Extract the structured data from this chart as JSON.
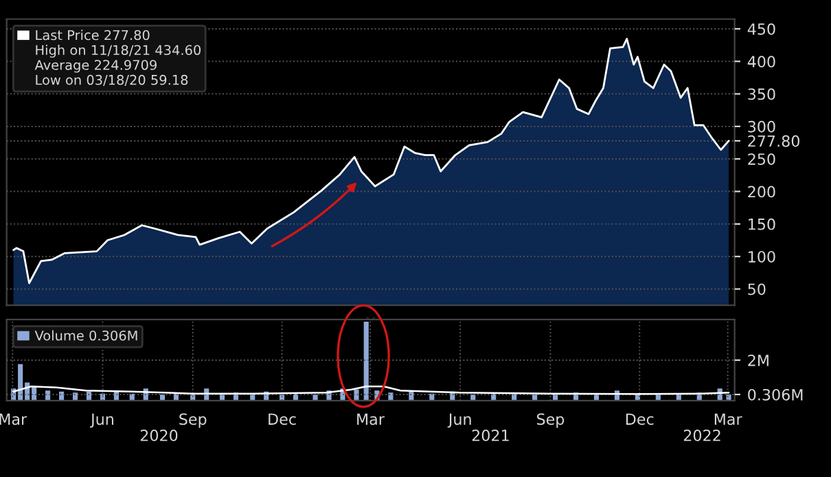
{
  "chart_data": [
    {
      "type": "area",
      "tick_labels": "y",
      "grid": true,
      "legend": "top left",
      "xlim": [
        "2020-02-24",
        "2022-03-08"
      ],
      "ylim": [
        25,
        465
      ],
      "yticks": [
        50,
        100,
        150,
        200,
        250,
        {
          "value": 277.8,
          "label": "277.80"
        },
        300,
        350,
        400,
        450
      ],
      "annotations": [
        "High on 11/18/21 434.60",
        "Average 224.9709",
        "Low on 03/18/20 59.18"
      ],
      "series": [
        {
          "name": "Last Price 277.80",
          "color": "#0c2750",
          "x": [
            "2020-03-02",
            "2020-03-05",
            "2020-03-12",
            "2020-03-18",
            "2020-03-30",
            "2020-04-10",
            "2020-04-23",
            "2020-05-26",
            "2020-06-06",
            "2020-06-23",
            "2020-07-11",
            "2020-07-24",
            "2020-08-17",
            "2020-09-04",
            "2020-09-08",
            "2020-09-27",
            "2020-10-19",
            "2020-10-31",
            "2020-11-16",
            "2020-12-13",
            "2021-01-10",
            "2021-01-29",
            "2021-02-13",
            "2021-02-20",
            "2021-03-06",
            "2021-03-25",
            "2021-04-05",
            "2021-04-16",
            "2021-04-26",
            "2021-05-05",
            "2021-05-12",
            "2021-05-27",
            "2021-06-10",
            "2021-06-29",
            "2021-07-13",
            "2021-07-21",
            "2021-08-04",
            "2021-08-23",
            "2021-09-10",
            "2021-09-20",
            "2021-09-28",
            "2021-10-10",
            "2021-10-17",
            "2021-10-25",
            "2021-11-01",
            "2021-11-14",
            "2021-11-18",
            "2021-11-25",
            "2021-11-29",
            "2021-12-06",
            "2021-12-15",
            "2021-12-26",
            "2022-01-02",
            "2022-01-12",
            "2022-01-19",
            "2022-01-26",
            "2022-02-04",
            "2022-02-12",
            "2022-02-22",
            "2022-03-02"
          ],
          "values": [
            110,
            113,
            108,
            59,
            93,
            95,
            105,
            108,
            125,
            133,
            148,
            143,
            133,
            130,
            118,
            128,
            138,
            120,
            143,
            168,
            201,
            226,
            253,
            231,
            208,
            226,
            269,
            259,
            256,
            256,
            231,
            256,
            271,
            276,
            289,
            307,
            322,
            314,
            372,
            359,
            327,
            319,
            339,
            359,
            420,
            422,
            434.6,
            395,
            407,
            369,
            359,
            395,
            385,
            344,
            359,
            302,
            302,
            284,
            264,
            277.8
          ]
        }
      ]
    },
    {
      "type": "bar",
      "grid": true,
      "legend": "top left",
      "xlim": [
        "2020-02-24",
        "2022-03-08"
      ],
      "ylim": [
        0,
        4.0
      ],
      "yticks": [
        {
          "value": 0.306,
          "label": "0.306M"
        },
        {
          "value": 2,
          "label": "2M"
        }
      ],
      "xticks": [
        {
          "value": "2020-03-01",
          "label": "Mar"
        },
        {
          "value": "2020-06-01",
          "label": "Jun"
        },
        {
          "value": "2020-09-01",
          "label": "Sep"
        },
        {
          "value": "2020-12-01",
          "label": "Dec"
        },
        {
          "value": "2021-03-01",
          "label": "Mar"
        },
        {
          "value": "2021-06-01",
          "label": "Jun"
        },
        {
          "value": "2021-09-01",
          "label": "Sep"
        },
        {
          "value": "2021-12-01",
          "label": "Dec"
        },
        {
          "value": "2022-03-01",
          "label": "Mar"
        }
      ],
      "annotations": [
        "2020",
        "2021",
        "2022"
      ],
      "series": [
        {
          "name": "Volume 0.306M",
          "color": "#8fa9d6",
          "x": [
            "2020-03-02",
            "2020-03-09",
            "2020-03-16",
            "2020-03-23",
            "2020-04-06",
            "2020-04-20",
            "2020-05-04",
            "2020-05-18",
            "2020-06-01",
            "2020-06-15",
            "2020-07-01",
            "2020-07-15",
            "2020-08-01",
            "2020-08-15",
            "2020-09-01",
            "2020-09-15",
            "2020-10-01",
            "2020-10-15",
            "2020-11-01",
            "2020-11-15",
            "2020-12-01",
            "2020-12-15",
            "2021-01-04",
            "2021-01-18",
            "2021-02-01",
            "2021-02-15",
            "2021-02-25",
            "2021-03-08",
            "2021-03-22",
            "2021-04-12",
            "2021-05-03",
            "2021-05-24",
            "2021-06-14",
            "2021-07-05",
            "2021-07-26",
            "2021-08-16",
            "2021-09-06",
            "2021-09-27",
            "2021-10-18",
            "2021-11-08",
            "2021-11-29",
            "2021-12-20",
            "2022-01-10",
            "2022-01-31",
            "2022-02-21",
            "2022-03-02"
          ],
          "values": [
            0.6,
            1.8,
            0.9,
            0.7,
            0.5,
            0.45,
            0.4,
            0.45,
            0.35,
            0.5,
            0.35,
            0.6,
            0.3,
            0.4,
            0.3,
            0.6,
            0.3,
            0.4,
            0.3,
            0.45,
            0.3,
            0.35,
            0.3,
            0.5,
            0.6,
            0.55,
            3.9,
            0.5,
            0.4,
            0.45,
            0.35,
            0.45,
            0.3,
            0.35,
            0.4,
            0.3,
            0.35,
            0.4,
            0.3,
            0.5,
            0.35,
            0.3,
            0.35,
            0.4,
            0.6,
            0.306
          ]
        },
        {
          "type": "line",
          "color": "#ffffff",
          "x": [
            "2020-03-02",
            "2020-03-20",
            "2020-04-15",
            "2020-05-15",
            "2020-07-01",
            "2020-09-01",
            "2020-11-01",
            "2021-01-15",
            "2021-02-10",
            "2021-02-25",
            "2021-03-15",
            "2021-04-01",
            "2021-06-01",
            "2021-09-01",
            "2021-12-01",
            "2022-02-01",
            "2022-03-02"
          ],
          "values": [
            0.45,
            0.7,
            0.65,
            0.5,
            0.45,
            0.35,
            0.35,
            0.4,
            0.55,
            0.7,
            0.7,
            0.5,
            0.4,
            0.35,
            0.33,
            0.35,
            0.4
          ]
        }
      ]
    }
  ]
}
